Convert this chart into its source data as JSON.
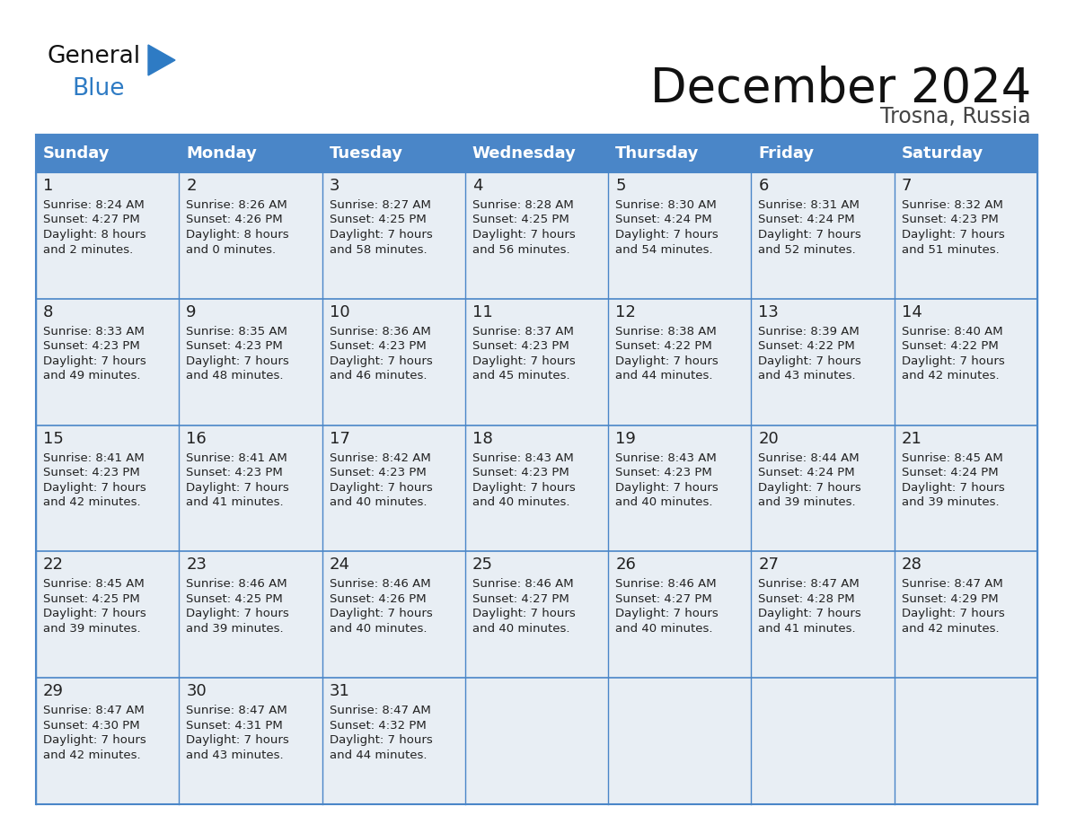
{
  "title": "December 2024",
  "subtitle": "Trosna, Russia",
  "days_of_week": [
    "Sunday",
    "Monday",
    "Tuesday",
    "Wednesday",
    "Thursday",
    "Friday",
    "Saturday"
  ],
  "header_bg": "#4a86c8",
  "header_text_color": "#ffffff",
  "cell_bg_light": "#e8eef4",
  "cell_bg_white": "#ffffff",
  "border_color": "#4a86c8",
  "day_num_color": "#222222",
  "text_color": "#222222",
  "title_color": "#111111",
  "subtitle_color": "#444444",
  "logo_general_color": "#111111",
  "logo_blue_color": "#2e7bc4",
  "calendar_data": [
    [
      {
        "day": 1,
        "sunrise": "8:24 AM",
        "sunset": "4:27 PM",
        "daylight_line1": "Daylight: 8 hours",
        "daylight_line2": "and 2 minutes."
      },
      {
        "day": 2,
        "sunrise": "8:26 AM",
        "sunset": "4:26 PM",
        "daylight_line1": "Daylight: 8 hours",
        "daylight_line2": "and 0 minutes."
      },
      {
        "day": 3,
        "sunrise": "8:27 AM",
        "sunset": "4:25 PM",
        "daylight_line1": "Daylight: 7 hours",
        "daylight_line2": "and 58 minutes."
      },
      {
        "day": 4,
        "sunrise": "8:28 AM",
        "sunset": "4:25 PM",
        "daylight_line1": "Daylight: 7 hours",
        "daylight_line2": "and 56 minutes."
      },
      {
        "day": 5,
        "sunrise": "8:30 AM",
        "sunset": "4:24 PM",
        "daylight_line1": "Daylight: 7 hours",
        "daylight_line2": "and 54 minutes."
      },
      {
        "day": 6,
        "sunrise": "8:31 AM",
        "sunset": "4:24 PM",
        "daylight_line1": "Daylight: 7 hours",
        "daylight_line2": "and 52 minutes."
      },
      {
        "day": 7,
        "sunrise": "8:32 AM",
        "sunset": "4:23 PM",
        "daylight_line1": "Daylight: 7 hours",
        "daylight_line2": "and 51 minutes."
      }
    ],
    [
      {
        "day": 8,
        "sunrise": "8:33 AM",
        "sunset": "4:23 PM",
        "daylight_line1": "Daylight: 7 hours",
        "daylight_line2": "and 49 minutes."
      },
      {
        "day": 9,
        "sunrise": "8:35 AM",
        "sunset": "4:23 PM",
        "daylight_line1": "Daylight: 7 hours",
        "daylight_line2": "and 48 minutes."
      },
      {
        "day": 10,
        "sunrise": "8:36 AM",
        "sunset": "4:23 PM",
        "daylight_line1": "Daylight: 7 hours",
        "daylight_line2": "and 46 minutes."
      },
      {
        "day": 11,
        "sunrise": "8:37 AM",
        "sunset": "4:23 PM",
        "daylight_line1": "Daylight: 7 hours",
        "daylight_line2": "and 45 minutes."
      },
      {
        "day": 12,
        "sunrise": "8:38 AM",
        "sunset": "4:22 PM",
        "daylight_line1": "Daylight: 7 hours",
        "daylight_line2": "and 44 minutes."
      },
      {
        "day": 13,
        "sunrise": "8:39 AM",
        "sunset": "4:22 PM",
        "daylight_line1": "Daylight: 7 hours",
        "daylight_line2": "and 43 minutes."
      },
      {
        "day": 14,
        "sunrise": "8:40 AM",
        "sunset": "4:22 PM",
        "daylight_line1": "Daylight: 7 hours",
        "daylight_line2": "and 42 minutes."
      }
    ],
    [
      {
        "day": 15,
        "sunrise": "8:41 AM",
        "sunset": "4:23 PM",
        "daylight_line1": "Daylight: 7 hours",
        "daylight_line2": "and 42 minutes."
      },
      {
        "day": 16,
        "sunrise": "8:41 AM",
        "sunset": "4:23 PM",
        "daylight_line1": "Daylight: 7 hours",
        "daylight_line2": "and 41 minutes."
      },
      {
        "day": 17,
        "sunrise": "8:42 AM",
        "sunset": "4:23 PM",
        "daylight_line1": "Daylight: 7 hours",
        "daylight_line2": "and 40 minutes."
      },
      {
        "day": 18,
        "sunrise": "8:43 AM",
        "sunset": "4:23 PM",
        "daylight_line1": "Daylight: 7 hours",
        "daylight_line2": "and 40 minutes."
      },
      {
        "day": 19,
        "sunrise": "8:43 AM",
        "sunset": "4:23 PM",
        "daylight_line1": "Daylight: 7 hours",
        "daylight_line2": "and 40 minutes."
      },
      {
        "day": 20,
        "sunrise": "8:44 AM",
        "sunset": "4:24 PM",
        "daylight_line1": "Daylight: 7 hours",
        "daylight_line2": "and 39 minutes."
      },
      {
        "day": 21,
        "sunrise": "8:45 AM",
        "sunset": "4:24 PM",
        "daylight_line1": "Daylight: 7 hours",
        "daylight_line2": "and 39 minutes."
      }
    ],
    [
      {
        "day": 22,
        "sunrise": "8:45 AM",
        "sunset": "4:25 PM",
        "daylight_line1": "Daylight: 7 hours",
        "daylight_line2": "and 39 minutes."
      },
      {
        "day": 23,
        "sunrise": "8:46 AM",
        "sunset": "4:25 PM",
        "daylight_line1": "Daylight: 7 hours",
        "daylight_line2": "and 39 minutes."
      },
      {
        "day": 24,
        "sunrise": "8:46 AM",
        "sunset": "4:26 PM",
        "daylight_line1": "Daylight: 7 hours",
        "daylight_line2": "and 40 minutes."
      },
      {
        "day": 25,
        "sunrise": "8:46 AM",
        "sunset": "4:27 PM",
        "daylight_line1": "Daylight: 7 hours",
        "daylight_line2": "and 40 minutes."
      },
      {
        "day": 26,
        "sunrise": "8:46 AM",
        "sunset": "4:27 PM",
        "daylight_line1": "Daylight: 7 hours",
        "daylight_line2": "and 40 minutes."
      },
      {
        "day": 27,
        "sunrise": "8:47 AM",
        "sunset": "4:28 PM",
        "daylight_line1": "Daylight: 7 hours",
        "daylight_line2": "and 41 minutes."
      },
      {
        "day": 28,
        "sunrise": "8:47 AM",
        "sunset": "4:29 PM",
        "daylight_line1": "Daylight: 7 hours",
        "daylight_line2": "and 42 minutes."
      }
    ],
    [
      {
        "day": 29,
        "sunrise": "8:47 AM",
        "sunset": "4:30 PM",
        "daylight_line1": "Daylight: 7 hours",
        "daylight_line2": "and 42 minutes."
      },
      {
        "day": 30,
        "sunrise": "8:47 AM",
        "sunset": "4:31 PM",
        "daylight_line1": "Daylight: 7 hours",
        "daylight_line2": "and 43 minutes."
      },
      {
        "day": 31,
        "sunrise": "8:47 AM",
        "sunset": "4:32 PM",
        "daylight_line1": "Daylight: 7 hours",
        "daylight_line2": "and 44 minutes."
      },
      null,
      null,
      null,
      null
    ]
  ]
}
